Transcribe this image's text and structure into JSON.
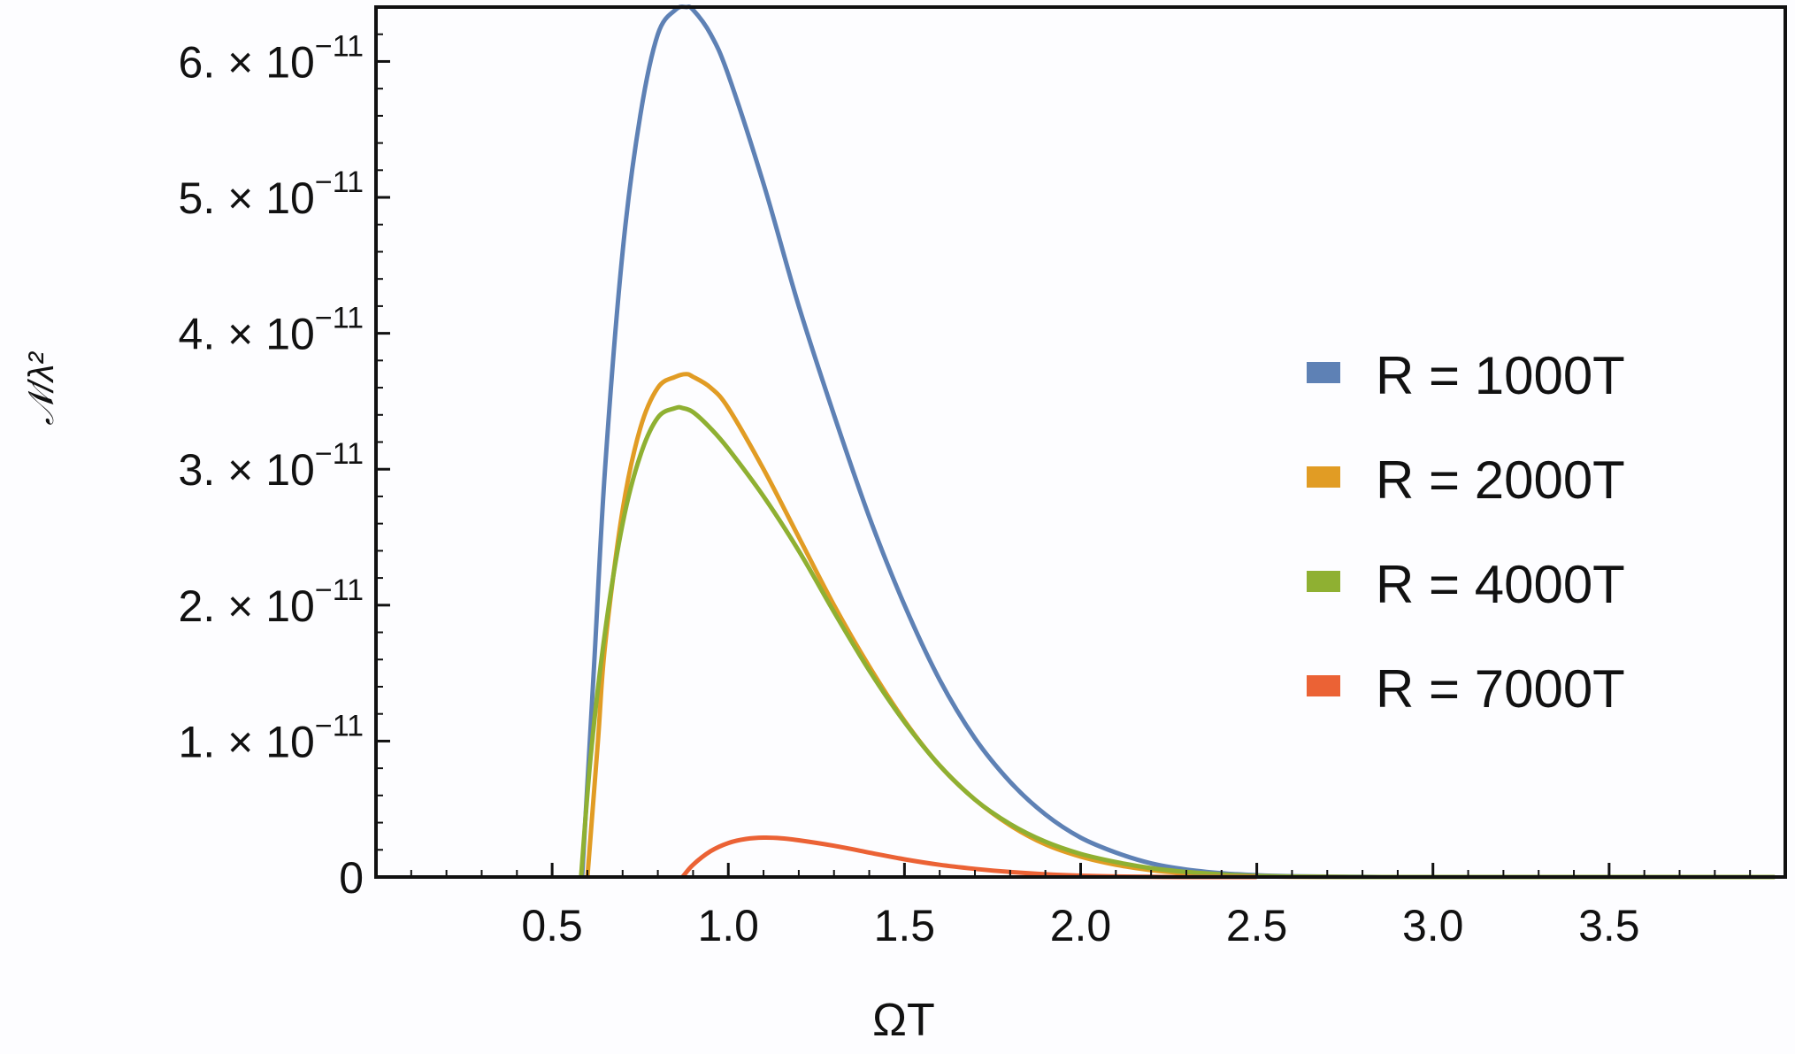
{
  "chart_data": {
    "type": "line",
    "title": "",
    "xlabel": "ΩT",
    "ylabel": "𝒩/λ²",
    "xlim": [
      0,
      4.0
    ],
    "ylim": [
      0,
      6.4e-11
    ],
    "x_ticks": [
      0.5,
      1.0,
      1.5,
      2.0,
      2.5,
      3.0,
      3.5
    ],
    "x_tick_labels": [
      "0.5",
      "1.0",
      "1.5",
      "2.0",
      "2.5",
      "3.0",
      "3.5"
    ],
    "y_ticks": [
      0,
      1e-11,
      2e-11,
      3e-11,
      4e-11,
      5e-11,
      6e-11
    ],
    "y_tick_labels": [
      {
        "mant": "0",
        "exp": ""
      },
      {
        "mant": "1.",
        "exp": "−11"
      },
      {
        "mant": "2.",
        "exp": "−11"
      },
      {
        "mant": "3.",
        "exp": "−11"
      },
      {
        "mant": "4.",
        "exp": "−11"
      },
      {
        "mant": "5.",
        "exp": "−11"
      },
      {
        "mant": "6.",
        "exp": "−11"
      }
    ],
    "y_tick_prefix": "× 10",
    "grid": false,
    "legend_position": "right",
    "series": [
      {
        "name": "R = 1000T",
        "color": "#5e81b5",
        "x": [
          0.585,
          0.62,
          0.65,
          0.7,
          0.75,
          0.8,
          0.85,
          0.88,
          0.9,
          0.95,
          1.0,
          1.1,
          1.2,
          1.3,
          1.4,
          1.5,
          1.6,
          1.7,
          1.8,
          1.9,
          2.0,
          2.1,
          2.2,
          2.3,
          2.4,
          2.5,
          2.6,
          2.8,
          3.0,
          3.5,
          3.97
        ],
        "y": [
          0,
          1.6e-11,
          3e-11,
          4.6e-11,
          5.6e-11,
          6.2e-11,
          6.38e-11,
          6.4e-11,
          6.38e-11,
          6.2e-11,
          5.9e-11,
          5.1e-11,
          4.2e-11,
          3.4e-11,
          2.65e-11,
          2e-11,
          1.45e-11,
          1.02e-11,
          7e-12,
          4.6e-12,
          2.9e-12,
          1.8e-12,
          1e-12,
          5.5e-13,
          2.8e-13,
          1.3e-13,
          6e-14,
          1e-14,
          0,
          0,
          0
        ]
      },
      {
        "name": "R = 2000T",
        "color": "#e19c24",
        "x": [
          0.6,
          0.63,
          0.65,
          0.7,
          0.75,
          0.8,
          0.85,
          0.88,
          0.9,
          0.95,
          1.0,
          1.1,
          1.2,
          1.3,
          1.4,
          1.5,
          1.6,
          1.7,
          1.8,
          1.9,
          2.0,
          2.1,
          2.2,
          2.3,
          2.4,
          2.5,
          2.6,
          2.8,
          3.0,
          3.5,
          3.97
        ],
        "y": [
          0,
          1e-11,
          1.7e-11,
          2.7e-11,
          3.3e-11,
          3.6e-11,
          3.68e-11,
          3.7e-11,
          3.68e-11,
          3.6e-11,
          3.45e-11,
          3e-11,
          2.5e-11,
          2e-11,
          1.55e-11,
          1.15e-11,
          8.2e-12,
          5.7e-12,
          3.8e-12,
          2.4e-12,
          1.5e-12,
          9e-13,
          5e-13,
          2.7e-13,
          1.4e-13,
          6e-14,
          2e-14,
          0,
          0,
          0,
          0
        ]
      },
      {
        "name": "R = 4000T",
        "color": "#8fb032",
        "x": [
          0.582,
          0.61,
          0.65,
          0.7,
          0.75,
          0.8,
          0.85,
          0.87,
          0.9,
          0.95,
          1.0,
          1.1,
          1.2,
          1.3,
          1.4,
          1.5,
          1.6,
          1.7,
          1.8,
          1.9,
          2.0,
          2.1,
          2.2,
          2.3,
          2.4,
          2.5,
          2.6,
          2.8,
          3.0,
          3.5,
          3.97
        ],
        "y": [
          0,
          9e-12,
          1.8e-11,
          2.6e-11,
          3.1e-11,
          3.38e-11,
          3.45e-11,
          3.45e-11,
          3.42e-11,
          3.3e-11,
          3.15e-11,
          2.8e-11,
          2.4e-11,
          1.95e-11,
          1.52e-11,
          1.14e-11,
          8.2e-12,
          5.7e-12,
          3.9e-12,
          2.6e-12,
          1.7e-12,
          1.1e-12,
          6.5e-13,
          3.7e-13,
          1.9e-13,
          8e-14,
          3e-14,
          0,
          0,
          0,
          0
        ]
      },
      {
        "name": "R = 7000T",
        "color": "#eb6235",
        "x": [
          0.87,
          0.9,
          0.95,
          1.0,
          1.05,
          1.1,
          1.15,
          1.2,
          1.3,
          1.4,
          1.5,
          1.6,
          1.7,
          1.8,
          1.9,
          2.0,
          2.1,
          2.2,
          2.3,
          2.5
        ],
        "y": [
          0,
          9e-13,
          1.9e-12,
          2.5e-12,
          2.8e-12,
          2.9e-12,
          2.85e-12,
          2.7e-12,
          2.3e-12,
          1.8e-12,
          1.3e-12,
          9e-13,
          6e-13,
          3.7e-13,
          2e-13,
          1e-13,
          4e-14,
          1e-14,
          0,
          0
        ]
      }
    ]
  }
}
